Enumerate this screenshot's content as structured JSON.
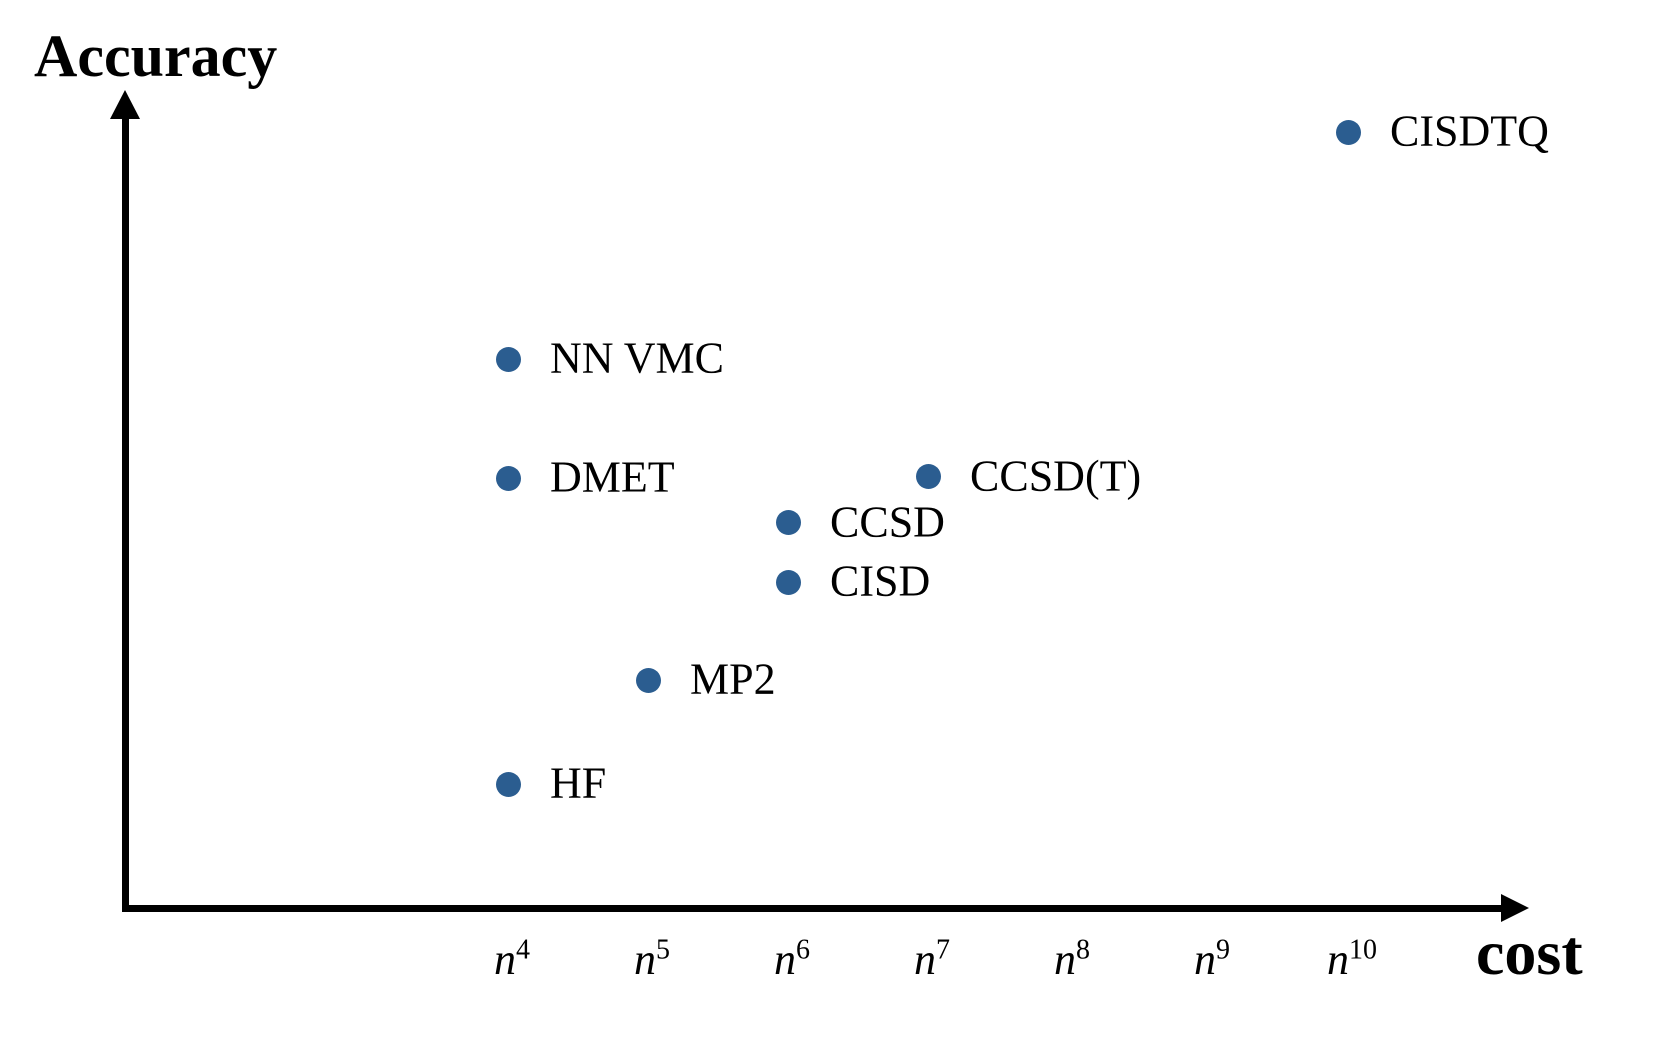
{
  "chart_data": {
    "type": "scatter",
    "title": "",
    "xlabel": "cost",
    "ylabel": "Accuracy",
    "x_scale_note": "cost scaling as powers of system size n",
    "x_ticks": [
      {
        "base": "n",
        "exp": "4"
      },
      {
        "base": "n",
        "exp": "5"
      },
      {
        "base": "n",
        "exp": "6"
      },
      {
        "base": "n",
        "exp": "7"
      },
      {
        "base": "n",
        "exp": "8"
      },
      {
        "base": "n",
        "exp": "9"
      },
      {
        "base": "n",
        "exp": "10"
      }
    ],
    "points": [
      {
        "label": "CISDTQ",
        "cost_exponent": 10,
        "accuracy_rel": 0.953
      },
      {
        "label": "NN VMC",
        "cost_exponent": 4,
        "accuracy_rel": 0.674
      },
      {
        "label": "DMET",
        "cost_exponent": 4,
        "accuracy_rel": 0.528
      },
      {
        "label": "CCSD(T)",
        "cost_exponent": 7,
        "accuracy_rel": 0.53
      },
      {
        "label": "CCSD",
        "cost_exponent": 6,
        "accuracy_rel": 0.473
      },
      {
        "label": "CISD",
        "cost_exponent": 6,
        "accuracy_rel": 0.4
      },
      {
        "label": "MP2",
        "cost_exponent": 5,
        "accuracy_rel": 0.28
      },
      {
        "label": "HF",
        "cost_exponent": 4,
        "accuracy_rel": 0.152
      }
    ],
    "point_color": "#2B5D90",
    "axis_color": "#000000",
    "legend": "none",
    "grid": false,
    "ylim_note": "qualitative axis, no y ticks"
  }
}
